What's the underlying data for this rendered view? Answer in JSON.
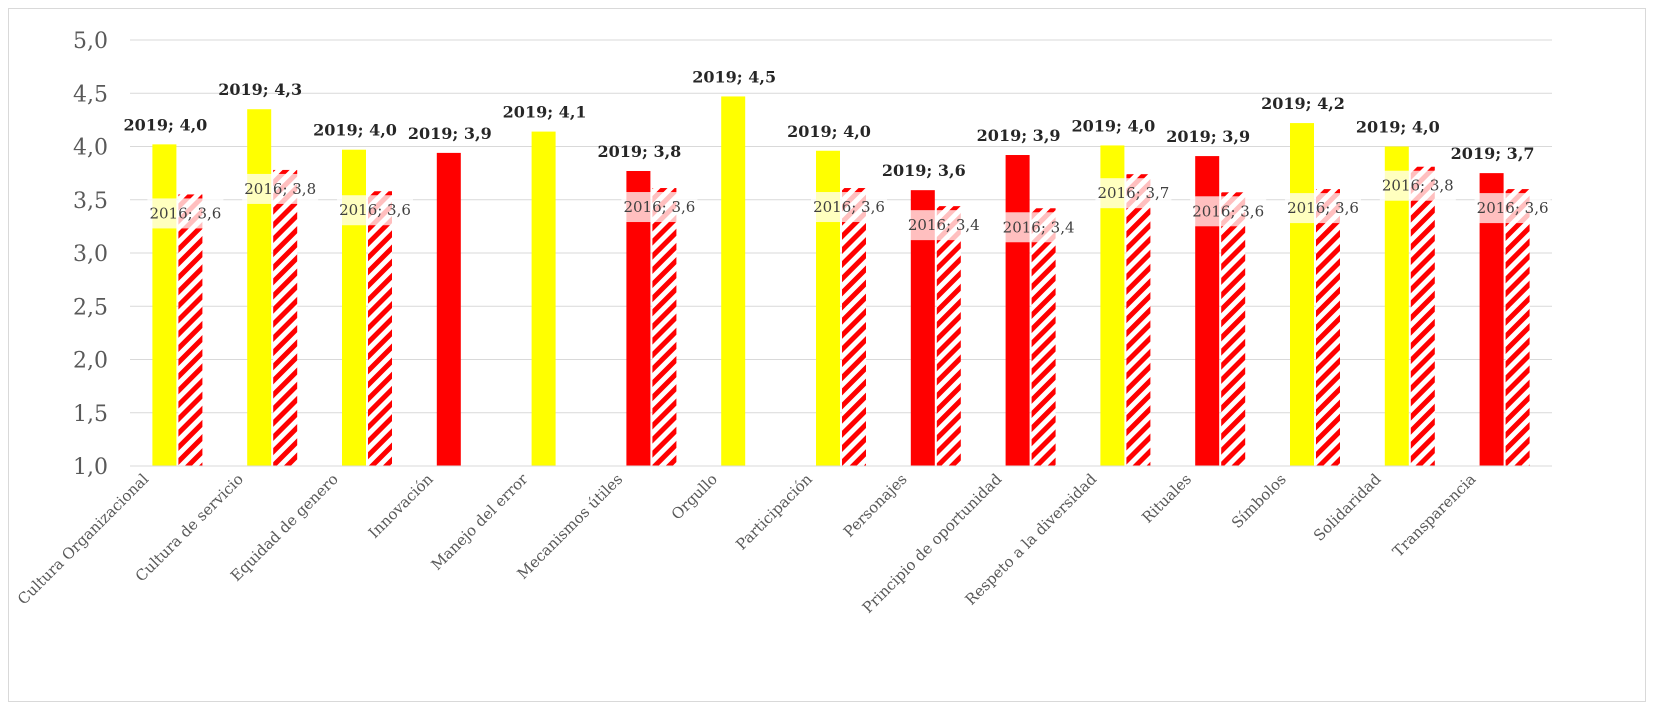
{
  "chart_data": {
    "type": "bar",
    "title": "",
    "xlabel": "",
    "ylabel": "",
    "ylim": [
      1.0,
      5.0
    ],
    "yticks": [
      "1,0",
      "1,5",
      "2,0",
      "2,5",
      "3,0",
      "3,5",
      "4,0",
      "4,5",
      "5,0"
    ],
    "grid": true,
    "legend": "none",
    "categories": [
      "Cultura Organizacional",
      "Cultura de servicio",
      "Equidad de genero",
      "Innovación",
      "Manejo del error",
      "Mecanismos útiles",
      "Orgullo",
      "Participación",
      "Personajes",
      "Principio de oportunidad",
      "Respeto a la diversidad",
      "Rituales",
      "Símbolos",
      "Solidaridad",
      "Transparencia"
    ],
    "series": [
      {
        "name": "2019",
        "values": [
          4.02,
          4.35,
          3.97,
          3.94,
          4.14,
          3.77,
          4.47,
          3.96,
          3.59,
          3.92,
          4.01,
          3.91,
          4.22,
          4.0,
          3.75
        ],
        "labels": [
          "2019; 4,0",
          "2019; 4,3",
          "2019; 4,0",
          "2019; 3,9",
          "2019; 4,1",
          "2019; 3,8",
          "2019; 4,5",
          "2019; 4,0",
          "2019; 3,6",
          "2019; 3,9",
          "2019; 4,0",
          "2019; 3,9",
          "2019; 4,2",
          "2019; 4,0",
          "2019; 3,7"
        ],
        "colors": [
          "#ffff00",
          "#ffff00",
          "#ffff00",
          "#ff0000",
          "#ffff00",
          "#ff0000",
          "#ffff00",
          "#ffff00",
          "#ff0000",
          "#ff0000",
          "#ffff00",
          "#ff0000",
          "#ffff00",
          "#ffff00",
          "#ff0000"
        ]
      },
      {
        "name": "2016",
        "values": [
          3.55,
          3.78,
          3.58,
          null,
          null,
          3.61,
          null,
          3.61,
          3.44,
          3.42,
          3.74,
          3.57,
          3.6,
          3.81,
          3.6
        ],
        "labels": [
          "2016; 3,6",
          "2016; 3,8",
          "2016; 3,6",
          "",
          "",
          "2016; 3,6",
          "",
          "2016; 3,6",
          "2016; 3,4",
          "2016; 3,4",
          "2016; 3,7",
          "2016; 3,6",
          "2016; 3,6",
          "2016; 3,8",
          "2016; 3,6"
        ],
        "pattern": "red-diagonal-stripes"
      }
    ],
    "colors": {
      "yellow": "#ffff00",
      "red": "#ff0000",
      "gridline": "#d9d9d9",
      "axis_text": "#595959"
    }
  }
}
